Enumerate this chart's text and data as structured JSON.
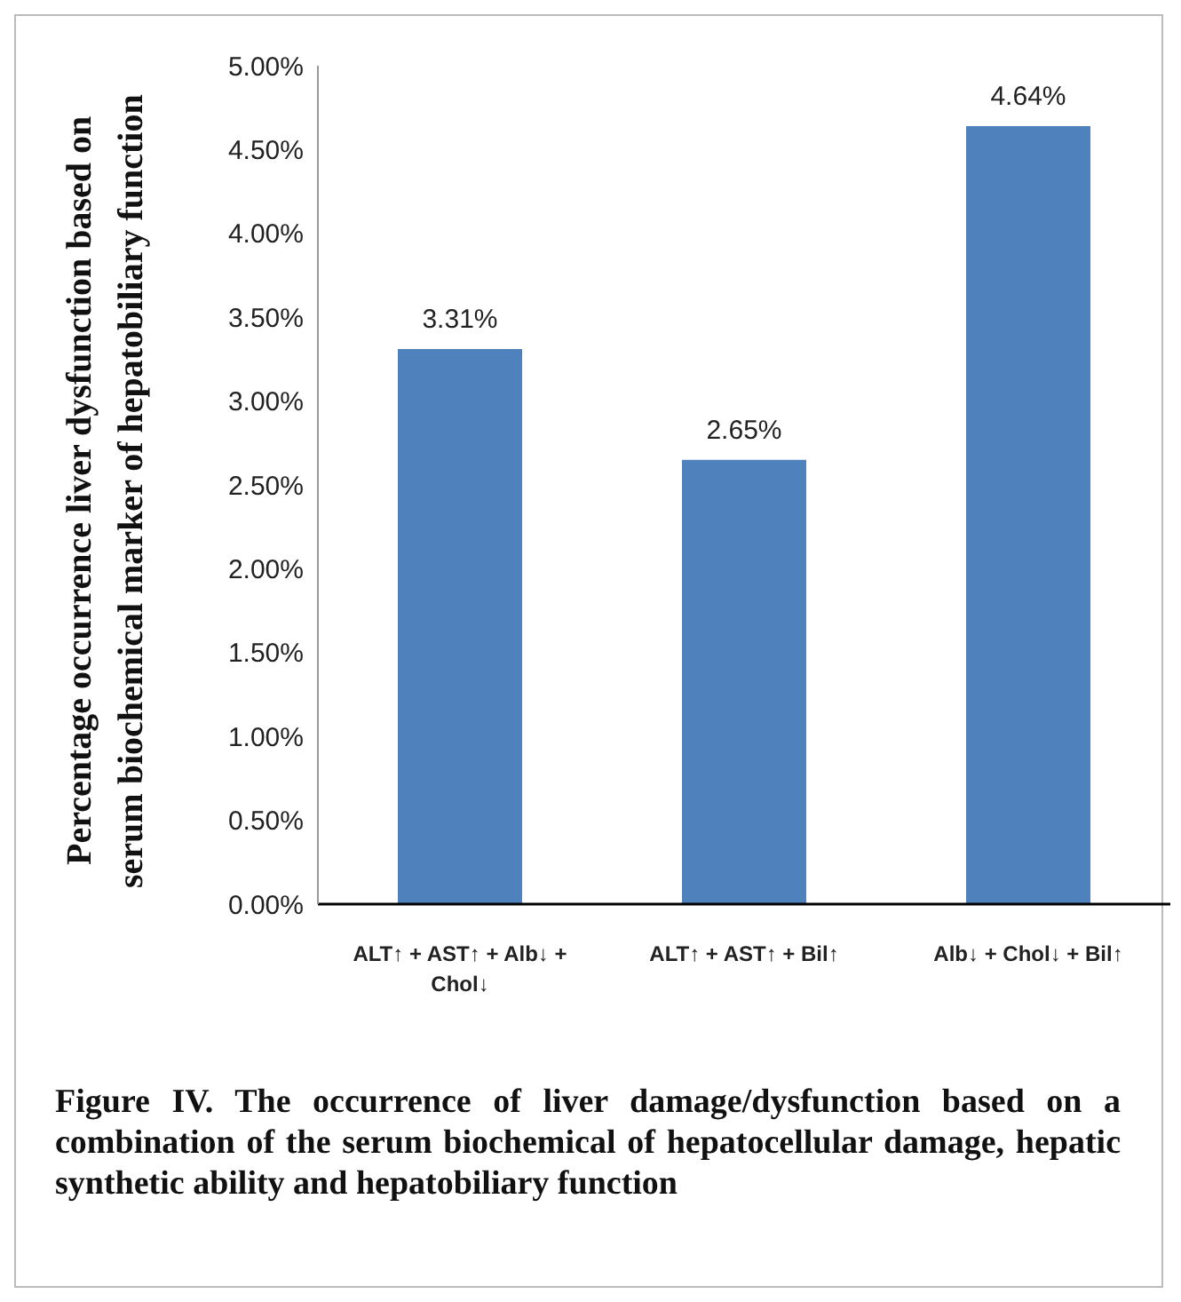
{
  "chart_data": {
    "type": "bar",
    "ylabel": "Percentage occurrence liver dysfunction based on serum biochemical marker of hepatobiliary function",
    "categories": [
      "ALT↑ + AST↑ + Alb↓ + Chol↓",
      "ALT↑ + AST↑ + Bil↑",
      "Alb↓ + Chol↓ + Bil↑"
    ],
    "values": [
      3.31,
      2.65,
      4.64
    ],
    "value_labels": [
      "3.31%",
      "2.65%",
      "4.64%"
    ],
    "color": "#4f81bd",
    "ylim": [
      0,
      5
    ],
    "yticks": [
      {
        "value": 0,
        "label": "0.00%"
      },
      {
        "value": 0.5,
        "label": "0.50%"
      },
      {
        "value": 1,
        "label": "1.00%"
      },
      {
        "value": 1.5,
        "label": "1.50%"
      },
      {
        "value": 2,
        "label": "2.00%"
      },
      {
        "value": 2.5,
        "label": "2.50%"
      },
      {
        "value": 3,
        "label": "3.00%"
      },
      {
        "value": 3.5,
        "label": "3.50%"
      },
      {
        "value": 4,
        "label": "4.00%"
      },
      {
        "value": 4.5,
        "label": "4.50%"
      },
      {
        "value": 5,
        "label": "5.00%"
      }
    ],
    "grid": false,
    "legend": false,
    "annotations": [
      "Figure IV. The occurrence of liver damage/dysfunction based on a combination of the serum biochemical of hepatocellular damage, hepatic synthetic ability and hepatobiliary function"
    ]
  }
}
